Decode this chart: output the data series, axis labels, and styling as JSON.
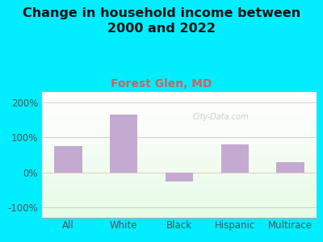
{
  "title": "Change in household income between\n2000 and 2022",
  "subtitle": "Forest Glen, MD",
  "categories": [
    "All",
    "White",
    "Black",
    "Hispanic",
    "Multirace"
  ],
  "values": [
    75,
    165,
    -25,
    80,
    30
  ],
  "bar_color": "#c4aad0",
  "title_fontsize": 11.5,
  "subtitle_fontsize": 10,
  "subtitle_color": "#c86464",
  "tick_label_fontsize": 8.5,
  "ytick_labels": [
    "-100%",
    "0%",
    "100%",
    "200%"
  ],
  "ytick_values": [
    -100,
    0,
    100,
    200
  ],
  "ylim": [
    -130,
    230
  ],
  "background_outer": "#00eeff",
  "watermark": "City-Data.com"
}
